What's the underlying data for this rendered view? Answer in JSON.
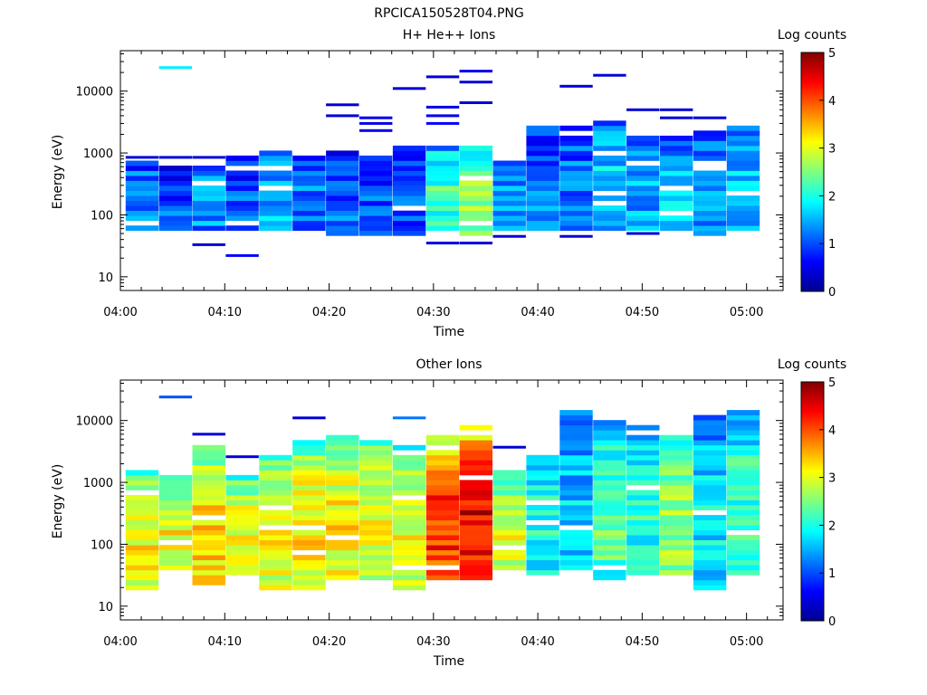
{
  "figure_title": "RPCICA150528T04.PNG",
  "colors": {
    "axis": "#000000",
    "background": "#ffffff"
  },
  "colormap": [
    "#00008f",
    "#0000ff",
    "#007fff",
    "#00ffff",
    "#7fff7f",
    "#ffff00",
    "#ff7f00",
    "#ff0000",
    "#7f0000"
  ],
  "chart_data": [
    {
      "type": "heatmap",
      "title": "H+ He++ Ions",
      "xlabel": "Time",
      "ylabel": "Energy (eV)",
      "x_ticks": [
        "04:00",
        "04:10",
        "04:20",
        "04:30",
        "04:40",
        "04:50",
        "05:00"
      ],
      "x_tick_minutes": [
        0,
        10,
        20,
        30,
        40,
        50,
        60
      ],
      "xlim_minutes": [
        0,
        63.5
      ],
      "y_scale": "log",
      "ylim": [
        6,
        45000
      ],
      "y_ticks": [
        "10",
        "100",
        "1000",
        "10000"
      ],
      "y_tick_values": [
        10,
        100,
        1000,
        10000
      ],
      "colorbar": {
        "label": "Log counts",
        "range": [
          0,
          5
        ],
        "ticks": [
          "0",
          "1",
          "2",
          "3",
          "4",
          "5"
        ]
      },
      "time_bins_minutes": [
        0.5,
        3.7,
        6.9,
        10.1,
        13.3,
        16.5,
        19.7,
        22.9,
        26.1,
        29.3,
        32.5,
        35.7,
        38.9,
        42.1,
        45.3,
        48.5,
        51.7,
        54.9,
        58.1,
        61.3
      ],
      "columns": [
        {
          "e_min": 60,
          "e_max": 750,
          "level": 1.3,
          "lines": [
            {
              "e": 850,
              "v": 0.4
            }
          ]
        },
        {
          "e_min": 60,
          "e_max": 600,
          "level": 1.0,
          "lines": [
            {
              "e": 24000,
              "v": 1.8
            },
            {
              "e": 850,
              "v": 0.4
            }
          ]
        },
        {
          "e_min": 60,
          "e_max": 600,
          "level": 1.4,
          "lines": [
            {
              "e": 33,
              "v": 0.4
            },
            {
              "e": 850,
              "v": 0.4
            }
          ]
        },
        {
          "e_min": 55,
          "e_max": 900,
          "level": 1.0,
          "lines": [
            {
              "e": 22,
              "v": 0.6
            }
          ]
        },
        {
          "e_min": 55,
          "e_max": 1100,
          "level": 1.5,
          "lines": []
        },
        {
          "e_min": 55,
          "e_max": 900,
          "level": 1.2,
          "lines": []
        },
        {
          "e_min": 50,
          "e_max": 1000,
          "level": 1.1,
          "lines": [
            {
              "e": 6000,
              "v": 0.4
            },
            {
              "e": 4000,
              "v": 0.4
            }
          ]
        },
        {
          "e_min": 50,
          "e_max": 950,
          "level": 1.0,
          "lines": [
            {
              "e": 3700,
              "v": 0.5
            },
            {
              "e": 3000,
              "v": 0.5
            },
            {
              "e": 2300,
              "v": 0.5
            }
          ]
        },
        {
          "e_min": 45,
          "e_max": 1200,
          "level": 1.1,
          "lines": [
            {
              "e": 11000,
              "v": 0.4
            }
          ]
        },
        {
          "e_min": 60,
          "e_max": 1200,
          "level": 2.2,
          "lines": [
            {
              "e": 17000,
              "v": 0.4
            },
            {
              "e": 5500,
              "v": 0.5
            },
            {
              "e": 4000,
              "v": 0.5
            },
            {
              "e": 3000,
              "v": 0.6
            },
            {
              "e": 35,
              "v": 0.4
            }
          ]
        },
        {
          "e_min": 50,
          "e_max": 1200,
          "level": 2.6,
          "lines": [
            {
              "e": 21000,
              "v": 0.5
            },
            {
              "e": 14000,
              "v": 0.4
            },
            {
              "e": 6500,
              "v": 0.4
            },
            {
              "e": 35,
              "v": 0.4
            }
          ]
        },
        {
          "e_min": 60,
          "e_max": 700,
          "level": 1.4,
          "lines": [
            {
              "e": 45,
              "v": 0.4
            }
          ]
        },
        {
          "e_min": 60,
          "e_max": 2600,
          "level": 1.2,
          "lines": []
        },
        {
          "e_min": 60,
          "e_max": 2600,
          "level": 1.2,
          "lines": [
            {
              "e": 12000,
              "v": 0.4
            },
            {
              "e": 45,
              "v": 0.4
            }
          ]
        },
        {
          "e_min": 60,
          "e_max": 3500,
          "level": 1.7,
          "lines": [
            {
              "e": 18000,
              "v": 0.4
            }
          ]
        },
        {
          "e_min": 60,
          "e_max": 2000,
          "level": 1.5,
          "lines": [
            {
              "e": 5000,
              "v": 0.4
            },
            {
              "e": 50,
              "v": 0.4
            }
          ]
        },
        {
          "e_min": 60,
          "e_max": 1800,
          "level": 1.6,
          "lines": [
            {
              "e": 5000,
              "v": 0.4
            },
            {
              "e": 3700,
              "v": 0.4
            }
          ]
        },
        {
          "e_min": 50,
          "e_max": 2300,
          "level": 1.4,
          "lines": [
            {
              "e": 3700,
              "v": 0.4
            }
          ]
        },
        {
          "e_min": 60,
          "e_max": 2900,
          "level": 1.6,
          "lines": []
        }
      ]
    },
    {
      "type": "heatmap",
      "title": "Other Ions",
      "xlabel": "Time",
      "ylabel": "Energy (eV)",
      "x_ticks": [
        "04:00",
        "04:10",
        "04:20",
        "04:30",
        "04:40",
        "04:50",
        "05:00"
      ],
      "x_tick_minutes": [
        0,
        10,
        20,
        30,
        40,
        50,
        60
      ],
      "xlim_minutes": [
        0,
        63.5
      ],
      "y_scale": "log",
      "ylim": [
        6,
        45000
      ],
      "y_ticks": [
        "10",
        "100",
        "1000",
        "10000"
      ],
      "y_tick_values": [
        10,
        100,
        1000,
        10000
      ],
      "colorbar": {
        "label": "Log counts",
        "range": [
          0,
          5
        ],
        "ticks": [
          "0",
          "1",
          "2",
          "3",
          "4",
          "5"
        ]
      },
      "time_bins_minutes": [
        0.5,
        3.7,
        6.9,
        10.1,
        13.3,
        16.5,
        19.7,
        22.9,
        26.1,
        29.3,
        32.5,
        35.7,
        38.9,
        42.1,
        45.3,
        48.5,
        51.7,
        54.9,
        58.1,
        61.3
      ],
      "columns": [
        {
          "e_min": 20,
          "e_max": 1500,
          "level": 3.2,
          "lines": []
        },
        {
          "e_min": 40,
          "e_max": 1400,
          "level": 3.1,
          "lines": [
            {
              "e": 24000,
              "v": 1.0
            }
          ]
        },
        {
          "e_min": 22,
          "e_max": 3800,
          "level": 3.4,
          "lines": [
            {
              "e": 6000,
              "v": 0.4
            }
          ]
        },
        {
          "e_min": 30,
          "e_max": 1400,
          "level": 3.1,
          "lines": [
            {
              "e": 2600,
              "v": 0.4
            }
          ]
        },
        {
          "e_min": 20,
          "e_max": 2600,
          "level": 3.2,
          "lines": []
        },
        {
          "e_min": 20,
          "e_max": 4600,
          "level": 3.3,
          "lines": [
            {
              "e": 11000,
              "v": 0.4
            }
          ]
        },
        {
          "e_min": 25,
          "e_max": 5400,
          "level": 3.2,
          "lines": []
        },
        {
          "e_min": 25,
          "e_max": 5000,
          "level": 3.1,
          "lines": []
        },
        {
          "e_min": 20,
          "e_max": 4000,
          "level": 3.0,
          "lines": [
            {
              "e": 11000,
              "v": 1.2
            }
          ]
        },
        {
          "e_min": 25,
          "e_max": 6000,
          "level": 4.2,
          "lines": []
        },
        {
          "e_min": 25,
          "e_max": 9000,
          "level": 4.5,
          "lines": []
        },
        {
          "e_min": 40,
          "e_max": 1700,
          "level": 3.0,
          "lines": [
            {
              "e": 3700,
              "v": 0.4
            }
          ]
        },
        {
          "e_min": 35,
          "e_max": 2600,
          "level": 2.0,
          "lines": []
        },
        {
          "e_min": 30,
          "e_max": 14000,
          "level": 1.6,
          "lines": []
        },
        {
          "e_min": 25,
          "e_max": 11000,
          "level": 2.3,
          "lines": []
        },
        {
          "e_min": 30,
          "e_max": 8000,
          "level": 2.1,
          "lines": []
        },
        {
          "e_min": 30,
          "e_max": 7500,
          "level": 2.6,
          "lines": []
        },
        {
          "e_min": 20,
          "e_max": 12000,
          "level": 1.8,
          "lines": []
        },
        {
          "e_min": 30,
          "e_max": 14000,
          "level": 2.2,
          "lines": []
        }
      ]
    }
  ]
}
